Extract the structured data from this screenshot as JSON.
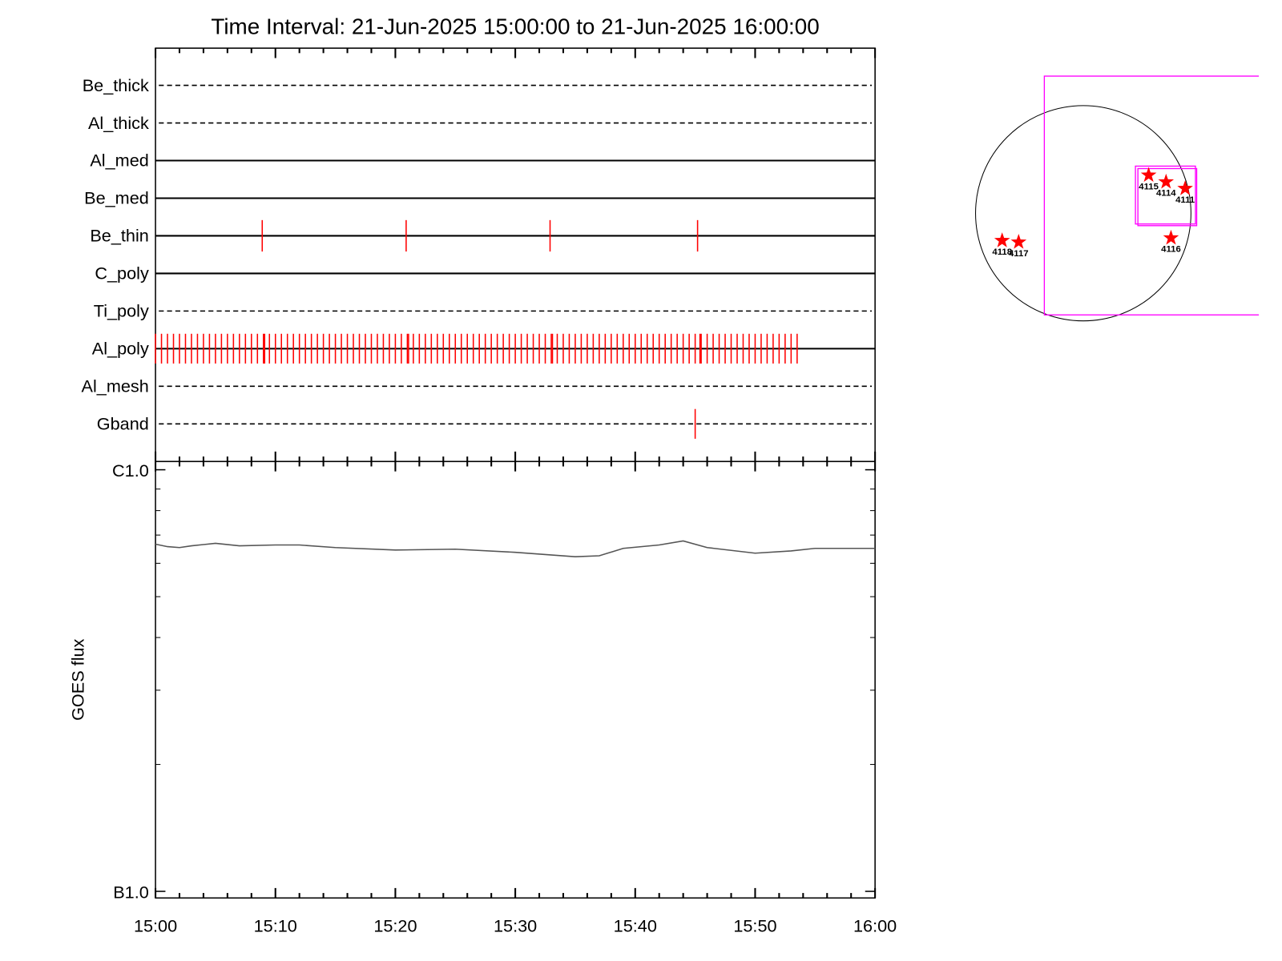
{
  "chart_data": [
    {
      "type": "timeline",
      "title": "Time Interval: 21-Jun-2025 15:00:00 to 21-Jun-2025 16:00:00",
      "xlim": [
        0,
        60
      ],
      "color": "#ff0000",
      "series": [
        {
          "name": "Be_thick",
          "line": "dashed",
          "events": []
        },
        {
          "name": "Al_thick",
          "line": "dashed",
          "events": []
        },
        {
          "name": "Al_med",
          "line": "solid",
          "events": []
        },
        {
          "name": "Be_med",
          "line": "solid",
          "events": []
        },
        {
          "name": "Be_thin",
          "line": "solid",
          "events": [
            8.9,
            20.9,
            32.9,
            45.2
          ]
        },
        {
          "name": "C_poly",
          "line": "solid",
          "events": []
        },
        {
          "name": "Ti_poly",
          "line": "dashed",
          "events": []
        },
        {
          "name": "Al_poly",
          "line": "solid",
          "events": [
            0,
            0.5,
            1,
            1.5,
            2,
            2.5,
            3,
            3.5,
            4,
            4.5,
            5,
            5.5,
            6,
            6.5,
            7,
            7.5,
            8,
            8.5,
            9,
            9.5,
            10,
            10.5,
            11,
            11.5,
            12,
            12.5,
            13,
            13.5,
            14,
            14.5,
            15,
            15.5,
            16,
            16.5,
            17,
            17.5,
            18,
            18.5,
            19,
            19.5,
            20,
            20.5,
            21,
            21.5,
            22,
            22.5,
            23,
            23.5,
            24,
            24.5,
            25,
            25.5,
            26,
            26.5,
            27,
            27.5,
            28,
            28.5,
            29,
            29.5,
            30,
            30.5,
            31,
            31.5,
            32,
            32.5,
            33,
            33.5,
            34,
            34.5,
            35,
            35.5,
            36,
            36.5,
            37,
            37.5,
            38,
            38.5,
            39,
            39.5,
            40,
            40.5,
            41,
            41.5,
            42,
            42.5,
            43,
            43.5,
            44,
            44.5,
            45,
            45.5,
            46,
            46.5,
            47,
            47.5,
            48,
            48.5,
            49,
            49.5,
            50,
            50.5,
            51,
            51.5,
            52,
            52.5,
            53,
            53.5,
            9.1,
            21.1,
            33.1,
            45.4
          ]
        },
        {
          "name": "Al_mesh",
          "line": "dashed",
          "events": []
        },
        {
          "name": "Gband",
          "line": "dashed",
          "events": [
            45.0
          ]
        }
      ]
    },
    {
      "type": "line",
      "ylabel": "GOES flux",
      "x": [
        0,
        1,
        2,
        3,
        5,
        7,
        10,
        12,
        15,
        20,
        25,
        30,
        35,
        37,
        39,
        42,
        44,
        46,
        50,
        53,
        55,
        60
      ],
      "values": [
        6.66e-07,
        6.57e-07,
        6.54e-07,
        6.6e-07,
        6.69e-07,
        6.6e-07,
        6.63e-07,
        6.63e-07,
        6.54e-07,
        6.45e-07,
        6.48e-07,
        6.37e-07,
        6.22e-07,
        6.25e-07,
        6.51e-07,
        6.63e-07,
        6.78e-07,
        6.54e-07,
        6.34e-07,
        6.42e-07,
        6.51e-07,
        6.51e-07
      ],
      "color": "#555555",
      "xlim": [
        0,
        60
      ],
      "xticks": [
        {
          "value": 0,
          "label": "15:00"
        },
        {
          "value": 10,
          "label": "15:10"
        },
        {
          "value": 20,
          "label": "15:20"
        },
        {
          "value": 30,
          "label": "15:30"
        },
        {
          "value": 40,
          "label": "15:40"
        },
        {
          "value": 50,
          "label": "15:50"
        },
        {
          "value": 60,
          "label": "16:00"
        }
      ],
      "xminorticks": [
        2,
        4,
        6,
        8,
        12,
        14,
        16,
        18,
        22,
        24,
        26,
        28,
        32,
        34,
        36,
        38,
        42,
        44,
        46,
        48,
        52,
        54,
        56,
        58
      ],
      "ylim": [
        1e-07,
        1e-06
      ],
      "log_scale": true,
      "yticks": [
        {
          "value": 1e-06,
          "label": "C1.0"
        },
        {
          "value": 1e-07,
          "label": "B1.0"
        }
      ],
      "yminorticks": [
        2e-07,
        3e-07,
        4e-07,
        5e-07,
        6e-07,
        7e-07,
        8e-07,
        9e-07
      ]
    },
    {
      "type": "map",
      "xlim": [
        -1030,
        1565
      ],
      "ylim": [
        -1420,
        1460
      ],
      "disk_radius": 960,
      "box_color": "#ff00ff",
      "color": "#ff0000",
      "boxes": [
        {
          "x": [
            -347,
            1700
          ],
          "y": [
            -908,
            1225
          ]
        },
        {
          "x": [
            465,
            1000
          ],
          "y": [
            -96,
            421
          ]
        },
        {
          "x": [
            487,
            1011
          ],
          "y": [
            -111,
            399
          ]
        }
      ],
      "points": {
        "labels": [
          "4115",
          "4114",
          "4111",
          "4118",
          "4117",
          "4116"
        ],
        "x": [
          583,
          738,
          908,
          -723,
          -576,
          782
        ],
        "y": [
          340,
          280,
          221,
          -244,
          -258,
          -221
        ]
      }
    }
  ]
}
